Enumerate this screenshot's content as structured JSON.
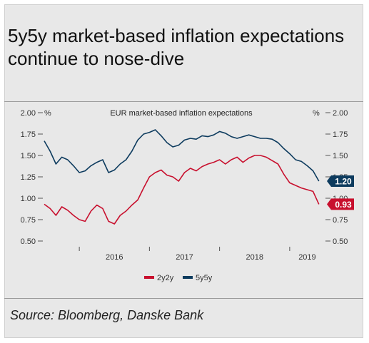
{
  "headline": "5y5y market-based inflation expectations continue to nose-dive",
  "source": "Source: Bloomberg, Danske Bank",
  "colors": {
    "series_2y2y": "#c8102e",
    "series_5y5y": "#0d3b5e",
    "background": "#e8e8e8"
  },
  "chart_data": {
    "type": "line",
    "title": "EUR market-based inflation expectations",
    "left_unit": "%",
    "right_unit": "%",
    "ylim": [
      0.5,
      2.0
    ],
    "yticks": [
      "2.00",
      "1.75",
      "1.50",
      "1.25",
      "1.00",
      "0.75",
      "0.50"
    ],
    "xlim": [
      "2015-07",
      "2019-07"
    ],
    "year_labels": [
      "2016",
      "2017",
      "2018",
      "2019"
    ],
    "grid": false,
    "legend_position": "bottom-center",
    "series": [
      {
        "name": "2y2y",
        "end_label": "0.93",
        "x": [
          "2015-07",
          "2015-08",
          "2015-09",
          "2015-10",
          "2015-11",
          "2015-12",
          "2016-01",
          "2016-02",
          "2016-03",
          "2016-04",
          "2016-05",
          "2016-06",
          "2016-07",
          "2016-08",
          "2016-09",
          "2016-10",
          "2016-11",
          "2016-12",
          "2017-01",
          "2017-02",
          "2017-03",
          "2017-04",
          "2017-05",
          "2017-06",
          "2017-07",
          "2017-08",
          "2017-09",
          "2017-10",
          "2017-11",
          "2017-12",
          "2018-01",
          "2018-02",
          "2018-03",
          "2018-04",
          "2018-05",
          "2018-06",
          "2018-07",
          "2018-08",
          "2018-09",
          "2018-10",
          "2018-11",
          "2018-12",
          "2019-01",
          "2019-02",
          "2019-03",
          "2019-04",
          "2019-05",
          "2019-06"
        ],
        "values": [
          0.93,
          0.88,
          0.8,
          0.9,
          0.86,
          0.8,
          0.75,
          0.73,
          0.85,
          0.92,
          0.88,
          0.73,
          0.7,
          0.8,
          0.85,
          0.92,
          0.98,
          1.12,
          1.25,
          1.3,
          1.33,
          1.27,
          1.25,
          1.2,
          1.3,
          1.35,
          1.32,
          1.37,
          1.4,
          1.42,
          1.45,
          1.4,
          1.45,
          1.48,
          1.42,
          1.47,
          1.5,
          1.5,
          1.48,
          1.44,
          1.4,
          1.28,
          1.18,
          1.15,
          1.12,
          1.1,
          1.08,
          0.93
        ]
      },
      {
        "name": "5y5y",
        "end_label": "1.20",
        "x": [
          "2015-07",
          "2015-08",
          "2015-09",
          "2015-10",
          "2015-11",
          "2015-12",
          "2016-01",
          "2016-02",
          "2016-03",
          "2016-04",
          "2016-05",
          "2016-06",
          "2016-07",
          "2016-08",
          "2016-09",
          "2016-10",
          "2016-11",
          "2016-12",
          "2017-01",
          "2017-02",
          "2017-03",
          "2017-04",
          "2017-05",
          "2017-06",
          "2017-07",
          "2017-08",
          "2017-09",
          "2017-10",
          "2017-11",
          "2017-12",
          "2018-01",
          "2018-02",
          "2018-03",
          "2018-04",
          "2018-05",
          "2018-06",
          "2018-07",
          "2018-08",
          "2018-09",
          "2018-10",
          "2018-11",
          "2018-12",
          "2019-01",
          "2019-02",
          "2019-03",
          "2019-04",
          "2019-05",
          "2019-06"
        ],
        "values": [
          1.67,
          1.55,
          1.4,
          1.48,
          1.45,
          1.38,
          1.3,
          1.32,
          1.38,
          1.42,
          1.45,
          1.3,
          1.33,
          1.4,
          1.45,
          1.55,
          1.68,
          1.75,
          1.77,
          1.8,
          1.73,
          1.65,
          1.6,
          1.62,
          1.68,
          1.7,
          1.69,
          1.73,
          1.72,
          1.74,
          1.78,
          1.76,
          1.72,
          1.7,
          1.72,
          1.74,
          1.72,
          1.7,
          1.7,
          1.69,
          1.65,
          1.58,
          1.52,
          1.45,
          1.43,
          1.38,
          1.32,
          1.2
        ]
      }
    ]
  }
}
